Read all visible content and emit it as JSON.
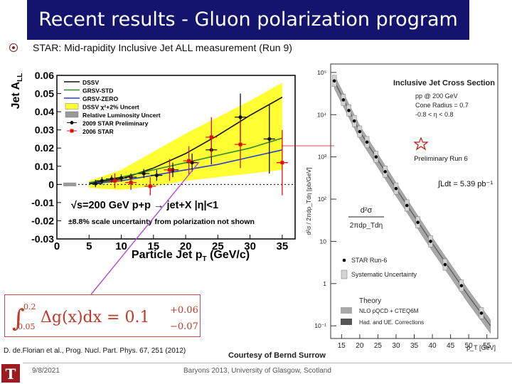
{
  "slide": {
    "title": "Recent results - Gluon polarization program",
    "subtitle": "STAR: Mid-rapidity Inclusive Jet ALL measurement (Run 9)",
    "reference": "D. de.Florian et al., Prog. Nucl. Part. Phys. 67, 251 (2012)",
    "courtesy": "Courtesy of Bernd Surrow",
    "date": "9/8/2021",
    "footer": "Baryons 2013, University of Glasgow, Scotland",
    "logo_letter": "T"
  },
  "equation": {
    "lower": "0.05",
    "upper": "0.2",
    "body": "Δg(x)dx = 0.1",
    "plus": "+0.06",
    "minus": "−0.07"
  },
  "chart_data": [
    {
      "type": "line",
      "xlabel": "Particle Jet p",
      "xlabel_sub": "T",
      "xlabel_unit": " (GeV/c)",
      "ylabel": "Jet A",
      "ylabel_sub": "LL",
      "xlim": [
        0,
        37
      ],
      "ylim": [
        -0.03,
        0.06
      ],
      "xticks": [
        "0",
        "5",
        "10",
        "15",
        "20",
        "25",
        "30",
        "35"
      ],
      "yticks": [
        "-0.03",
        "-0.02",
        "-0.01",
        "0",
        "0.01",
        "0.02",
        "0.03",
        "0.04",
        "0.05",
        "0.06"
      ],
      "legend_position": "top-left",
      "legend": [
        "DSSV",
        "GRSV-STD",
        "GRSV-ZERO",
        "DSSV χ²+2% Uncert",
        "Relative Luminosity Uncert",
        "2009 STAR Preliminary",
        "2006 STAR"
      ],
      "annotations": [
        "√s=200 GeV   p+p → jet+X  |η|<1",
        "±8.8% scale uncertainty from polarization not shown"
      ],
      "series": [
        {
          "name": "DSSV",
          "color": "#111111",
          "x": [
            5,
            10,
            15,
            20,
            25,
            30,
            35
          ],
          "y": [
            0.0008,
            0.003,
            0.009,
            0.017,
            0.027,
            0.038,
            0.048
          ]
        },
        {
          "name": "GRSV-STD",
          "color": "#2e8b2e",
          "x": [
            5,
            10,
            15,
            20,
            25,
            30,
            35
          ],
          "y": [
            0.001,
            0.004,
            0.008,
            0.012,
            0.016,
            0.02,
            0.0255
          ]
        },
        {
          "name": "GRSV-ZERO",
          "color": "#2a3fd0",
          "x": [
            5,
            10,
            15,
            20,
            25,
            30,
            35
          ],
          "y": [
            0.0003,
            0.002,
            0.005,
            0.008,
            0.011,
            0.015,
            0.019
          ]
        },
        {
          "name": "DSSV χ²+2% Uncert",
          "color": "#ffff33",
          "x": [
            5,
            10,
            15,
            20,
            25,
            30,
            35
          ],
          "y_low": [
            -0.002,
            -0.003,
            -0.001,
            0.002,
            0.004,
            0.006,
            0.008
          ],
          "y_high": [
            0.002,
            0.008,
            0.018,
            0.028,
            0.037,
            0.046,
            0.056
          ]
        },
        {
          "name": "2009 STAR Preliminary",
          "color": "#111111",
          "x": [
            6,
            7,
            8.5,
            10,
            11.5,
            13.5,
            15.5,
            18,
            21,
            24,
            28.5,
            33
          ],
          "y": [
            0.0005,
            0.002,
            0.003,
            0.0035,
            0.004,
            0.006,
            0.005,
            0.008,
            0.012,
            0.019,
            0.037,
            0.025
          ],
          "yerr": [
            0.002,
            0.002,
            0.002,
            0.002,
            0.002,
            0.0025,
            0.003,
            0.004,
            0.005,
            0.008,
            0.013,
            0.019
          ]
        },
        {
          "name": "2006 STAR",
          "color": "#dd1111",
          "x": [
            9,
            11.5,
            14.5,
            17.5,
            20.5,
            24,
            28.5,
            35
          ],
          "y": [
            0.002,
            0.001,
            -0.001,
            0.008,
            0.013,
            0.026,
            0.022,
            0.012
          ],
          "yerr": [
            0.004,
            0.004,
            0.005,
            0.006,
            0.008,
            0.011,
            0.013,
            0.018
          ]
        }
      ]
    },
    {
      "type": "scatter",
      "title": "Inclusive Jet Cross Section",
      "info": [
        "pp @ 200 GeV",
        "Cone Radius = 0.7",
        "-0.8 < η < 0.8"
      ],
      "mark": "Preliminary Run 6",
      "lumi": "∫Ldt = 5.39 pb⁻¹",
      "xlabel": "p_T [GeV]",
      "ylabel": "d²σ / 2πdp_Tdη [pb/GeV]",
      "yscale": "log",
      "xlim": [
        12,
        58
      ],
      "ylim_exp": [
        -1.3,
        5.2
      ],
      "xticks": [
        "15",
        "20",
        "25",
        "30",
        "35",
        "40",
        "45",
        "50",
        "55"
      ],
      "yticks": [
        "10⁵",
        "10⁴",
        "10³",
        "10²",
        "10",
        "1",
        "10⁻¹"
      ],
      "yticks_exp": [
        5,
        4,
        3,
        2,
        1,
        0,
        -1
      ],
      "legend": [
        "STAR Run-6",
        "Systematic Uncertainty",
        "Theory",
        "NLO pQCD + CTEQ6M",
        "Had. and UE. Corrections"
      ],
      "series": [
        {
          "name": "STAR Run-6",
          "x": [
            13,
            15.5,
            17,
            18.5,
            20,
            22,
            24.5,
            27,
            30,
            33,
            36,
            39.5,
            43.5,
            48,
            53.5
          ],
          "log10_y": [
            4.8,
            4.35,
            4.1,
            3.85,
            3.6,
            3.35,
            3.0,
            2.65,
            2.25,
            1.85,
            1.45,
            1.0,
            0.45,
            -0.05,
            -0.7
          ]
        },
        {
          "name": "NLO pQCD + CTEQ6M",
          "x": [
            13,
            20,
            30,
            40,
            50,
            56
          ],
          "log10_y": [
            4.8,
            3.6,
            2.25,
            0.95,
            -0.3,
            -1.0
          ]
        }
      ]
    }
  ]
}
